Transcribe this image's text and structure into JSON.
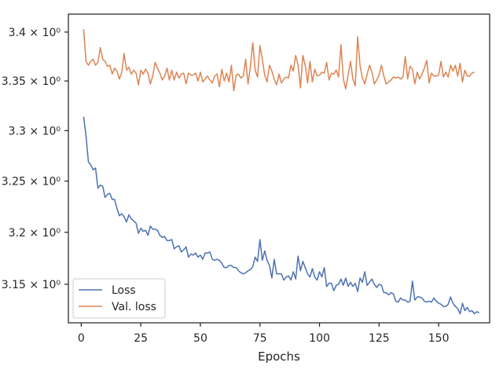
{
  "chart_data": {
    "type": "line",
    "title": "",
    "xlabel": "Epochs",
    "ylabel": "",
    "xlim": [
      -5.4,
      171.4
    ],
    "ylim": [
      3.1135,
      3.4185
    ],
    "y_scale": "log",
    "grid": false,
    "legend_position": "lower-left",
    "x_ticks": [
      0,
      25,
      50,
      75,
      100,
      125,
      150
    ],
    "x_tick_labels": [
      "0",
      "25",
      "50",
      "75",
      "100",
      "125",
      "150"
    ],
    "y_ticks": [
      3.15,
      3.2,
      3.25,
      3.3,
      3.35,
      3.4
    ],
    "y_tick_labels": [
      "3.15 × 10⁰",
      "3.2 × 10⁰",
      "3.25 × 10⁰",
      "3.3 × 10⁰",
      "3.35 × 10⁰",
      "3.4 × 10⁰"
    ],
    "x_start": 1,
    "series": [
      {
        "name": "Loss",
        "color": "#4c72b0",
        "values": [
          3.314,
          3.295,
          3.269,
          3.266,
          3.261,
          3.263,
          3.243,
          3.246,
          3.245,
          3.234,
          3.237,
          3.238,
          3.232,
          3.232,
          3.223,
          3.216,
          3.218,
          3.215,
          3.21,
          3.217,
          3.213,
          3.211,
          3.209,
          3.199,
          3.204,
          3.201,
          3.202,
          3.197,
          3.206,
          3.203,
          3.203,
          3.202,
          3.197,
          3.195,
          3.196,
          3.192,
          3.192,
          3.193,
          3.184,
          3.186,
          3.187,
          3.181,
          3.183,
          3.186,
          3.176,
          3.179,
          3.178,
          3.18,
          3.176,
          3.178,
          3.174,
          3.18,
          3.18,
          3.181,
          3.174,
          3.173,
          3.174,
          3.173,
          3.17,
          3.166,
          3.166,
          3.168,
          3.168,
          3.166,
          3.166,
          3.163,
          3.161,
          3.16,
          3.161,
          3.163,
          3.164,
          3.167,
          3.176,
          3.172,
          3.193,
          3.173,
          3.182,
          3.173,
          3.168,
          3.156,
          3.174,
          3.16,
          3.16,
          3.16,
          3.154,
          3.157,
          3.158,
          3.154,
          3.162,
          3.155,
          3.177,
          3.163,
          3.172,
          3.166,
          3.16,
          3.157,
          3.165,
          3.157,
          3.154,
          3.162,
          3.157,
          3.166,
          3.148,
          3.151,
          3.151,
          3.144,
          3.149,
          3.15,
          3.155,
          3.149,
          3.156,
          3.148,
          3.152,
          3.148,
          3.151,
          3.143,
          3.156,
          3.152,
          3.162,
          3.149,
          3.152,
          3.155,
          3.15,
          3.147,
          3.15,
          3.149,
          3.142,
          3.142,
          3.14,
          3.142,
          3.141,
          3.134,
          3.133,
          3.137,
          3.135,
          3.135,
          3.133,
          3.134,
          3.153,
          3.135,
          3.138,
          3.138,
          3.137,
          3.134,
          3.133,
          3.134,
          3.133,
          3.137,
          3.134,
          3.132,
          3.131,
          3.129,
          3.129,
          3.131,
          3.138,
          3.132,
          3.129,
          3.127,
          3.122,
          3.132,
          3.125,
          3.128,
          3.124,
          3.125,
          3.122,
          3.124,
          3.123
        ]
      },
      {
        "name": "Val. loss",
        "color": "#dd8452",
        "values": [
          3.403,
          3.37,
          3.366,
          3.37,
          3.372,
          3.366,
          3.369,
          3.384,
          3.372,
          3.37,
          3.365,
          3.366,
          3.357,
          3.363,
          3.36,
          3.352,
          3.359,
          3.378,
          3.361,
          3.364,
          3.357,
          3.361,
          3.358,
          3.346,
          3.361,
          3.357,
          3.362,
          3.358,
          3.347,
          3.355,
          3.369,
          3.363,
          3.358,
          3.351,
          3.355,
          3.363,
          3.351,
          3.361,
          3.351,
          3.359,
          3.353,
          3.357,
          3.358,
          3.347,
          3.358,
          3.356,
          3.356,
          3.358,
          3.35,
          3.359,
          3.349,
          3.352,
          3.355,
          3.351,
          3.348,
          3.355,
          3.357,
          3.344,
          3.362,
          3.35,
          3.358,
          3.349,
          3.366,
          3.34,
          3.356,
          3.357,
          3.353,
          3.355,
          3.372,
          3.347,
          3.365,
          3.389,
          3.361,
          3.354,
          3.386,
          3.372,
          3.356,
          3.349,
          3.366,
          3.36,
          3.352,
          3.346,
          3.357,
          3.348,
          3.352,
          3.354,
          3.353,
          3.366,
          3.36,
          3.376,
          3.366,
          3.343,
          3.376,
          3.366,
          3.348,
          3.37,
          3.349,
          3.362,
          3.355,
          3.356,
          3.359,
          3.358,
          3.369,
          3.351,
          3.358,
          3.357,
          3.361,
          3.354,
          3.387,
          3.352,
          3.342,
          3.356,
          3.37,
          3.352,
          3.345,
          3.395,
          3.366,
          3.353,
          3.347,
          3.357,
          3.366,
          3.359,
          3.347,
          3.351,
          3.356,
          3.366,
          3.355,
          3.347,
          3.349,
          3.351,
          3.354,
          3.353,
          3.354,
          3.352,
          3.354,
          3.375,
          3.352,
          3.365,
          3.362,
          3.347,
          3.359,
          3.352,
          3.357,
          3.363,
          3.371,
          3.348,
          3.358,
          3.355,
          3.355,
          3.356,
          3.37,
          3.354,
          3.359,
          3.354,
          3.366,
          3.36,
          3.366,
          3.355,
          3.368,
          3.349,
          3.361,
          3.355,
          3.355,
          3.358,
          3.359
        ]
      }
    ]
  }
}
